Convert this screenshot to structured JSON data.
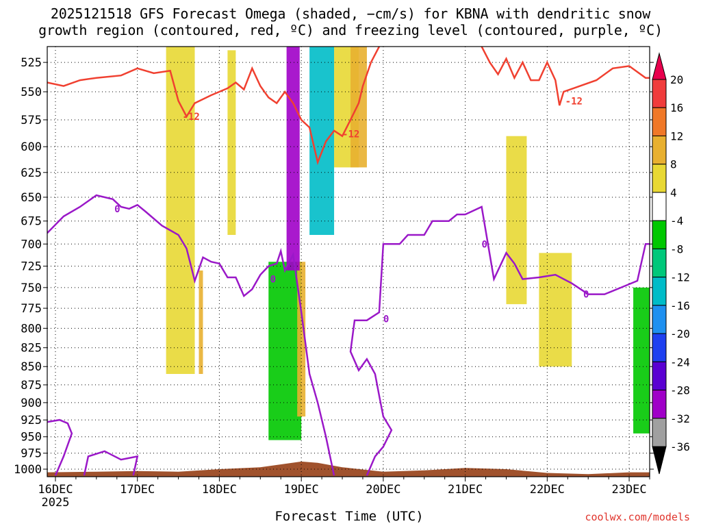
{
  "title": {
    "line1": "2025121518 GFS Forecast Omega (shaded, −cm/s) for KBNA with dendritic snow",
    "line2": "growth region (contoured, red, ºC) and freezing level (contoured, purple, ºC)"
  },
  "footer": "coolwx.com/models",
  "chart_data": {
    "type": "heatmap",
    "xlabel": "Forecast Time (UTC)",
    "ylabel": "",
    "x_ticks": [
      {
        "day": 0,
        "label": "16DEC"
      },
      {
        "day": 1,
        "label": "17DEC"
      },
      {
        "day": 2,
        "label": "18DEC"
      },
      {
        "day": 3,
        "label": "19DEC"
      },
      {
        "day": 4,
        "label": "20DEC"
      },
      {
        "day": 5,
        "label": "21DEC"
      },
      {
        "day": 6,
        "label": "22DEC"
      },
      {
        "day": 7,
        "label": "23DEC"
      }
    ],
    "x_year": "2025",
    "xlim_days": [
      -0.1,
      7.25
    ],
    "y_ticks": [
      525,
      550,
      575,
      600,
      625,
      650,
      675,
      700,
      725,
      750,
      775,
      800,
      825,
      850,
      875,
      900,
      925,
      950,
      975,
      1000
    ],
    "ylim_hpa": [
      512,
      1012
    ],
    "y_scale": "log-pressure",
    "grid": true,
    "colorbar": {
      "ticks": [
        "20",
        "16",
        "12",
        "8",
        "4",
        "-4",
        "-8",
        "-12",
        "-16",
        "-20",
        "-24",
        "-28",
        "-32",
        "-36"
      ],
      "colors": [
        "#e8004d",
        "#f03c3c",
        "#f07828",
        "#e8b030",
        "#e8d834",
        "#ffffff",
        "#00c800",
        "#00c87a",
        "#00bcc8",
        "#1e90f0",
        "#1e40f0",
        "#5a00d2",
        "#a000c8",
        "#a0a0a0",
        "#000000"
      ]
    },
    "contours": {
      "dgz_top_minus12": {
        "color": "#f04030",
        "points": [
          [
            -0.1,
            542
          ],
          [
            0.1,
            545
          ],
          [
            0.3,
            540
          ],
          [
            0.5,
            538
          ],
          [
            0.8,
            536
          ],
          [
            1.0,
            530
          ],
          [
            1.2,
            534
          ],
          [
            1.4,
            532
          ],
          [
            1.5,
            558
          ],
          [
            1.6,
            572
          ],
          [
            1.7,
            560
          ],
          [
            1.9,
            553
          ],
          [
            2.1,
            547
          ],
          [
            2.2,
            542
          ],
          [
            2.3,
            548
          ],
          [
            2.4,
            530
          ],
          [
            2.5,
            545
          ],
          [
            2.6,
            555
          ],
          [
            2.7,
            560
          ],
          [
            2.8,
            550
          ],
          [
            2.9,
            560
          ],
          [
            3.0,
            575
          ],
          [
            3.1,
            582
          ],
          [
            3.2,
            615
          ],
          [
            3.3,
            595
          ],
          [
            3.4,
            585
          ],
          [
            3.5,
            590
          ],
          [
            3.6,
            575
          ],
          [
            3.7,
            560
          ],
          [
            3.75,
            545
          ],
          [
            3.85,
            525
          ],
          [
            3.95,
            512
          ]
        ],
        "points_right": [
          [
            5.2,
            512
          ],
          [
            5.3,
            525
          ],
          [
            5.4,
            535
          ],
          [
            5.5,
            522
          ],
          [
            5.6,
            538
          ],
          [
            5.7,
            525
          ],
          [
            5.8,
            540
          ],
          [
            5.9,
            540
          ],
          [
            6.0,
            525
          ],
          [
            6.1,
            540
          ],
          [
            6.15,
            562
          ],
          [
            6.2,
            550
          ],
          [
            6.4,
            545
          ],
          [
            6.6,
            540
          ],
          [
            6.8,
            530
          ],
          [
            7.0,
            528
          ],
          [
            7.2,
            538
          ],
          [
            7.25,
            538
          ]
        ],
        "label": "-12",
        "labels_at": [
          [
            1.55,
            572
          ],
          [
            3.5,
            588
          ],
          [
            6.22,
            558
          ]
        ]
      },
      "freezing_level_0": {
        "color": "#9a18c8",
        "points": [
          [
            -0.1,
            688
          ],
          [
            0.1,
            670
          ],
          [
            0.3,
            660
          ],
          [
            0.5,
            648
          ],
          [
            0.7,
            652
          ],
          [
            0.8,
            660
          ],
          [
            0.9,
            662
          ],
          [
            1.0,
            658
          ],
          [
            1.1,
            665
          ],
          [
            1.3,
            680
          ],
          [
            1.5,
            690
          ],
          [
            1.6,
            705
          ],
          [
            1.7,
            742
          ],
          [
            1.8,
            715
          ],
          [
            1.9,
            720
          ],
          [
            2.0,
            722
          ],
          [
            2.1,
            738
          ],
          [
            2.2,
            738
          ],
          [
            2.3,
            760
          ],
          [
            2.4,
            752
          ],
          [
            2.5,
            735
          ],
          [
            2.6,
            725
          ],
          [
            2.7,
            722
          ],
          [
            2.75,
            708
          ],
          [
            2.8,
            730
          ],
          [
            2.9,
            712
          ],
          [
            3.0,
            780
          ],
          [
            3.1,
            860
          ],
          [
            3.2,
            900
          ],
          [
            3.3,
            950
          ],
          [
            3.4,
            1010
          ]
        ],
        "points_right": [
          [
            3.8,
            1010
          ],
          [
            3.9,
            980
          ],
          [
            4.0,
            965
          ],
          [
            4.1,
            940
          ],
          [
            4.0,
            920
          ],
          [
            3.95,
            890
          ],
          [
            3.9,
            860
          ],
          [
            3.8,
            840
          ],
          [
            3.7,
            855
          ],
          [
            3.6,
            830
          ],
          [
            3.65,
            790
          ],
          [
            3.8,
            790
          ],
          [
            3.95,
            780
          ],
          [
            4.0,
            700
          ],
          [
            4.2,
            700
          ],
          [
            4.3,
            690
          ],
          [
            4.5,
            690
          ],
          [
            4.6,
            675
          ],
          [
            4.8,
            675
          ],
          [
            4.9,
            668
          ],
          [
            5.0,
            668
          ],
          [
            5.2,
            660
          ],
          [
            5.35,
            740
          ],
          [
            5.5,
            710
          ],
          [
            5.6,
            722
          ],
          [
            5.7,
            740
          ],
          [
            5.9,
            738
          ],
          [
            6.1,
            735
          ],
          [
            6.3,
            745
          ],
          [
            6.5,
            758
          ],
          [
            6.7,
            758
          ],
          [
            6.9,
            750
          ],
          [
            7.1,
            742
          ],
          [
            7.2,
            700
          ],
          [
            7.25,
            700
          ]
        ],
        "label": "0",
        "labels_at": [
          [
            0.72,
            662
          ],
          [
            2.62,
            740
          ],
          [
            4.0,
            788
          ],
          [
            5.2,
            700
          ],
          [
            6.44,
            758
          ]
        ]
      }
    },
    "omega_regions": [
      {
        "value": 6,
        "x": [
          1.35,
          1.7
        ],
        "p": [
          512,
          860
        ]
      },
      {
        "value": 10,
        "x": [
          1.75,
          1.8
        ],
        "p": [
          730,
          860
        ]
      },
      {
        "value": 6,
        "x": [
          2.1,
          2.2
        ],
        "p": [
          515,
          690
        ]
      },
      {
        "value": -6,
        "x": [
          2.6,
          3.0
        ],
        "p": [
          720,
          955
        ]
      },
      {
        "value": 10,
        "x": [
          2.95,
          3.05
        ],
        "p": [
          720,
          920
        ]
      },
      {
        "value": -28,
        "x": [
          2.82,
          2.98
        ],
        "p": [
          512,
          730
        ]
      },
      {
        "value": -14,
        "x": [
          3.1,
          3.4
        ],
        "p": [
          512,
          690
        ]
      },
      {
        "value": 6,
        "x": [
          3.4,
          3.7
        ],
        "p": [
          512,
          620
        ]
      },
      {
        "value": 10,
        "x": [
          3.6,
          3.8
        ],
        "p": [
          512,
          620
        ]
      },
      {
        "value": 6,
        "x": [
          5.5,
          5.75
        ],
        "p": [
          590,
          770
        ]
      },
      {
        "value": 6,
        "x": [
          5.9,
          6.3
        ],
        "p": [
          710,
          850
        ]
      },
      {
        "value": -6,
        "x": [
          7.05,
          7.25
        ],
        "p": [
          750,
          945
        ]
      }
    ],
    "terrain_color": "#a0522d"
  }
}
